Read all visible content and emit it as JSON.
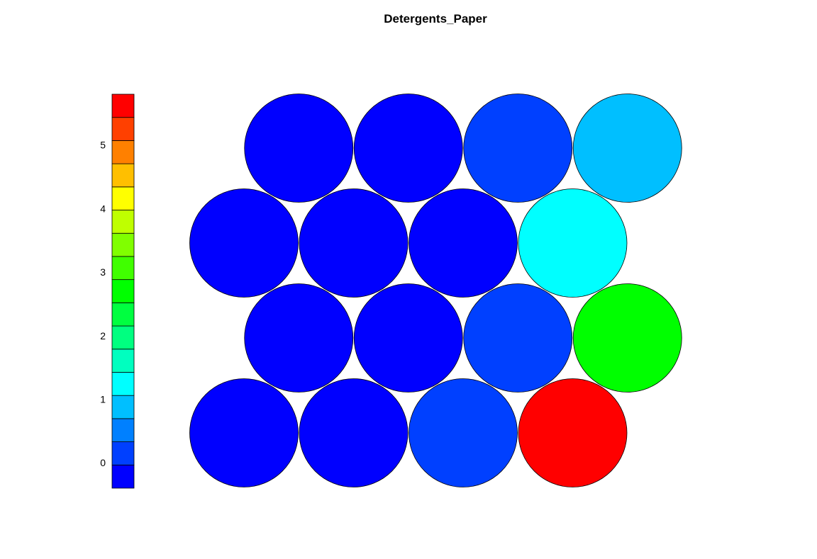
{
  "chart_data": {
    "type": "heatmap",
    "subtype": "som-hexagonal-property-map",
    "title": "Detergents_Paper",
    "grid": {
      "rows": 4,
      "cols": 4,
      "topology": "hexagonal"
    },
    "rows": [
      {
        "row": 1,
        "values": [
          -0.55,
          -0.55,
          0.15,
          0.9
        ]
      },
      {
        "row": 2,
        "values": [
          -0.55,
          -0.55,
          -0.55,
          1.4
        ]
      },
      {
        "row": 3,
        "values": [
          -0.55,
          -0.55,
          0.15,
          2.8
        ]
      },
      {
        "row": 4,
        "values": [
          -0.55,
          -0.55,
          0.15,
          5.6
        ]
      }
    ],
    "colorbar": {
      "range": [
        -0.4,
        5.8
      ],
      "ticks": [
        0,
        1,
        2,
        3,
        4,
        5
      ],
      "colors": [
        "#0000FF",
        "#0040FF",
        "#0080FF",
        "#00BFFF",
        "#00FFFF",
        "#00FFBF",
        "#00FF80",
        "#00FF40",
        "#00FF00",
        "#40FF00",
        "#80FF00",
        "#BFFF00",
        "#FFFF00",
        "#FFBF00",
        "#FF8000",
        "#FF4000",
        "#FF0000"
      ]
    }
  }
}
